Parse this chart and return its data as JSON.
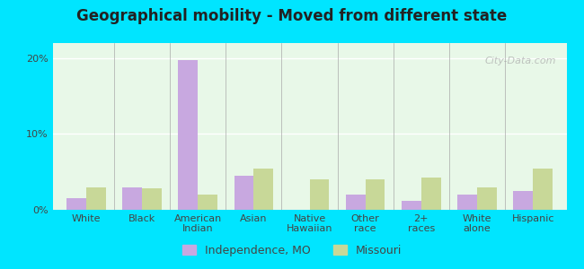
{
  "title": "Geographical mobility - Moved from different state",
  "categories": [
    "White",
    "Black",
    "American\nIndian",
    "Asian",
    "Native\nHawaiian",
    "Other\nrace",
    "2+\nraces",
    "White\nalone",
    "Hispanic"
  ],
  "independence_values": [
    1.5,
    3.0,
    19.8,
    4.5,
    0.0,
    2.0,
    1.2,
    2.0,
    2.5
  ],
  "missouri_values": [
    3.0,
    2.8,
    2.0,
    5.5,
    4.0,
    4.0,
    4.2,
    3.0,
    5.5
  ],
  "independence_color": "#c8a8e0",
  "missouri_color": "#c8d898",
  "bar_width": 0.35,
  "ylim": [
    0,
    22
  ],
  "yticks": [
    0,
    10,
    20
  ],
  "ytick_labels": [
    "0%",
    "10%",
    "20%"
  ],
  "bg_top_color": "#e8f8e8",
  "bg_bottom_color": "#f8fff8",
  "outer_bg_color": "#00e5ff",
  "legend_independence": "Independence, MO",
  "legend_missouri": "Missouri",
  "watermark": "City-Data.com"
}
